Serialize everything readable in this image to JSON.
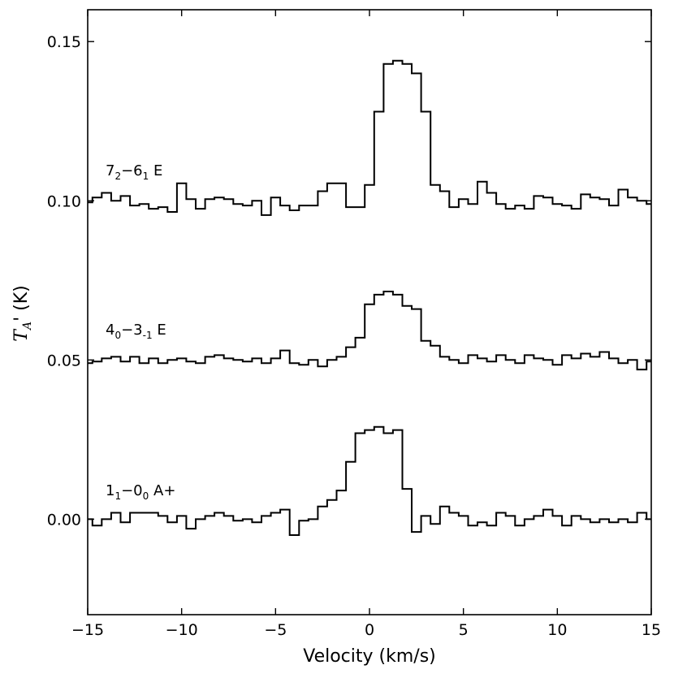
{
  "chart_data": {
    "type": "line",
    "style": "step",
    "xlabel": "Velocity (km/s)",
    "ylabel": "T_A' (K)",
    "xlim": [
      -15,
      15
    ],
    "ylim": [
      -0.03,
      0.16
    ],
    "xticks": [
      -15,
      -10,
      -5,
      0,
      5,
      10,
      15
    ],
    "xtick_labels": [
      "−15",
      "−10",
      "−5",
      "0",
      "5",
      "10",
      "15"
    ],
    "yticks": [
      0.0,
      0.05,
      0.1,
      0.15
    ],
    "ytick_labels": [
      "0.00",
      "0.05",
      "0.10",
      "0.15"
    ],
    "grid": false,
    "x": [
      -15.0,
      -14.5,
      -14.0,
      -13.5,
      -13.0,
      -12.5,
      -12.0,
      -11.5,
      -11.0,
      -10.5,
      -10.0,
      -9.5,
      -9.0,
      -8.5,
      -8.0,
      -7.5,
      -7.0,
      -6.5,
      -6.0,
      -5.5,
      -5.0,
      -4.5,
      -4.0,
      -3.5,
      -3.0,
      -2.5,
      -2.0,
      -1.5,
      -1.0,
      -0.5,
      0.0,
      0.5,
      1.0,
      1.5,
      2.0,
      2.5,
      3.0,
      3.5,
      4.0,
      4.5,
      5.0,
      5.5,
      6.0,
      6.5,
      7.0,
      7.5,
      8.0,
      8.5,
      9.0,
      9.5,
      10.0,
      10.5,
      11.0,
      11.5,
      12.0,
      12.5,
      13.0,
      13.5,
      14.0,
      14.5,
      15.0
    ],
    "series": [
      {
        "name": "7₂−6₁ E",
        "label_main": [
          "7",
          "−6",
          " E"
        ],
        "label_subs": [
          "2",
          "1"
        ],
        "values": [
          0.0995,
          0.101,
          0.1025,
          0.1,
          0.1015,
          0.0985,
          0.099,
          0.0975,
          0.098,
          0.0965,
          0.1055,
          0.1005,
          0.0975,
          0.1005,
          0.101,
          0.1005,
          0.099,
          0.0985,
          0.1,
          0.0955,
          0.101,
          0.0985,
          0.097,
          0.0985,
          0.0985,
          0.103,
          0.1055,
          0.1055,
          0.098,
          0.098,
          0.105,
          0.128,
          0.143,
          0.144,
          0.143,
          0.14,
          0.128,
          0.105,
          0.103,
          0.098,
          0.1005,
          0.099,
          0.106,
          0.1025,
          0.099,
          0.0975,
          0.0985,
          0.0975,
          0.1015,
          0.101,
          0.099,
          0.0985,
          0.0975,
          0.102,
          0.101,
          0.1005,
          0.0985,
          0.1035,
          0.101,
          0.1,
          0.099
        ]
      },
      {
        "name": "4₀−3₋₁ E",
        "label_main": [
          "4",
          "−3",
          " E"
        ],
        "label_subs": [
          "0",
          "-1"
        ],
        "values": [
          0.049,
          0.0495,
          0.0505,
          0.051,
          0.0495,
          0.051,
          0.049,
          0.0505,
          0.049,
          0.05,
          0.0505,
          0.0495,
          0.049,
          0.051,
          0.0515,
          0.0505,
          0.05,
          0.0495,
          0.0505,
          0.049,
          0.0505,
          0.053,
          0.049,
          0.0485,
          0.05,
          0.048,
          0.05,
          0.051,
          0.054,
          0.057,
          0.0675,
          0.0705,
          0.0715,
          0.0705,
          0.067,
          0.066,
          0.056,
          0.0545,
          0.051,
          0.05,
          0.049,
          0.0515,
          0.0505,
          0.0495,
          0.0515,
          0.05,
          0.049,
          0.0515,
          0.0505,
          0.05,
          0.0485,
          0.0515,
          0.0505,
          0.052,
          0.051,
          0.0525,
          0.0505,
          0.049,
          0.05,
          0.047,
          0.0495
        ]
      },
      {
        "name": "1₁−0₀ A+",
        "label_main": [
          "1",
          "−0",
          " A+"
        ],
        "label_subs": [
          "1",
          "0"
        ],
        "values": [
          0.0,
          -0.002,
          0.0,
          0.002,
          -0.001,
          0.002,
          0.002,
          0.002,
          0.001,
          -0.001,
          0.001,
          -0.003,
          0.0,
          0.001,
          0.002,
          0.001,
          -0.0005,
          0.0,
          -0.001,
          0.001,
          0.002,
          0.003,
          -0.005,
          -0.0005,
          0.0,
          0.004,
          0.006,
          0.009,
          0.018,
          0.027,
          0.028,
          0.029,
          0.027,
          0.028,
          0.0095,
          -0.004,
          0.001,
          -0.0015,
          0.004,
          0.002,
          0.001,
          -0.002,
          -0.001,
          -0.002,
          0.002,
          0.001,
          -0.002,
          0.0,
          0.001,
          0.003,
          0.001,
          -0.002,
          0.001,
          0.0,
          -0.001,
          0.0,
          -0.001,
          0.0,
          -0.001,
          0.002,
          0.0
        ]
      }
    ]
  }
}
